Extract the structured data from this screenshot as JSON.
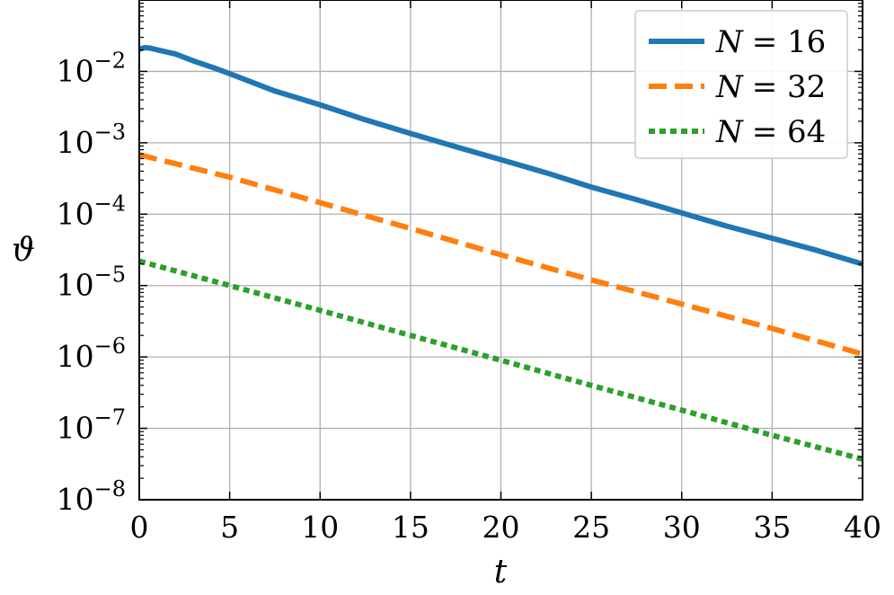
{
  "chart_data": {
    "type": "line",
    "xlabel": "t",
    "ylabel": "ϑ",
    "xlim": [
      0,
      40
    ],
    "ylim": [
      1e-08,
      0.1
    ],
    "yscale": "log",
    "grid": true,
    "legend_position": "top-right",
    "x_ticks": [
      0,
      5,
      10,
      15,
      20,
      25,
      30,
      35,
      40
    ],
    "y_ticks": [
      {
        "base": "10",
        "exp": "−2",
        "value": 0.01
      },
      {
        "base": "10",
        "exp": "−3",
        "value": 0.001
      },
      {
        "base": "10",
        "exp": "−4",
        "value": 0.0001
      },
      {
        "base": "10",
        "exp": "−5",
        "value": 1e-05
      },
      {
        "base": "10",
        "exp": "−6",
        "value": 1e-06
      },
      {
        "base": "10",
        "exp": "−7",
        "value": 1e-07
      },
      {
        "base": "10",
        "exp": "−8",
        "value": 1e-08
      }
    ],
    "series": [
      {
        "name": "N = 16",
        "legend_var": "N",
        "legend_value": "= 16",
        "color": "#1f77b4",
        "style": "solid",
        "x": [
          0,
          0.3,
          0.6,
          1,
          2,
          3,
          4,
          5,
          7.5,
          10,
          12.5,
          15,
          17.5,
          20,
          22.5,
          25,
          27.5,
          30,
          32.5,
          35,
          37.5,
          40
        ],
        "y": [
          0.0205,
          0.0215,
          0.0212,
          0.02,
          0.0175,
          0.014,
          0.0115,
          0.0093,
          0.0053,
          0.0034,
          0.0021,
          0.00135,
          0.00088,
          0.00058,
          0.00038,
          0.00024,
          0.00016,
          0.000104,
          6.8e-05,
          4.6e-05,
          3.1e-05,
          2e-05
        ]
      },
      {
        "name": "N = 32",
        "legend_var": "N",
        "legend_value": "= 32",
        "color": "#ff7f0e",
        "style": "dashed",
        "x": [
          0,
          5,
          10,
          15,
          20,
          25,
          30,
          35,
          40
        ],
        "y": [
          0.00068,
          0.00033,
          0.000145,
          6.3e-05,
          2.7e-05,
          1.2e-05,
          5.5e-06,
          2.5e-06,
          1.1e-06
        ]
      },
      {
        "name": "N = 64",
        "legend_var": "N",
        "legend_value": "= 64",
        "color": "#2ca02c",
        "style": "dotted",
        "x": [
          0,
          5,
          10,
          15,
          20,
          25,
          30,
          35,
          40
        ],
        "y": [
          2.2e-05,
          1e-05,
          4.5e-06,
          2e-06,
          9e-07,
          4e-07,
          1.8e-07,
          8e-08,
          3.7e-08
        ]
      }
    ]
  }
}
